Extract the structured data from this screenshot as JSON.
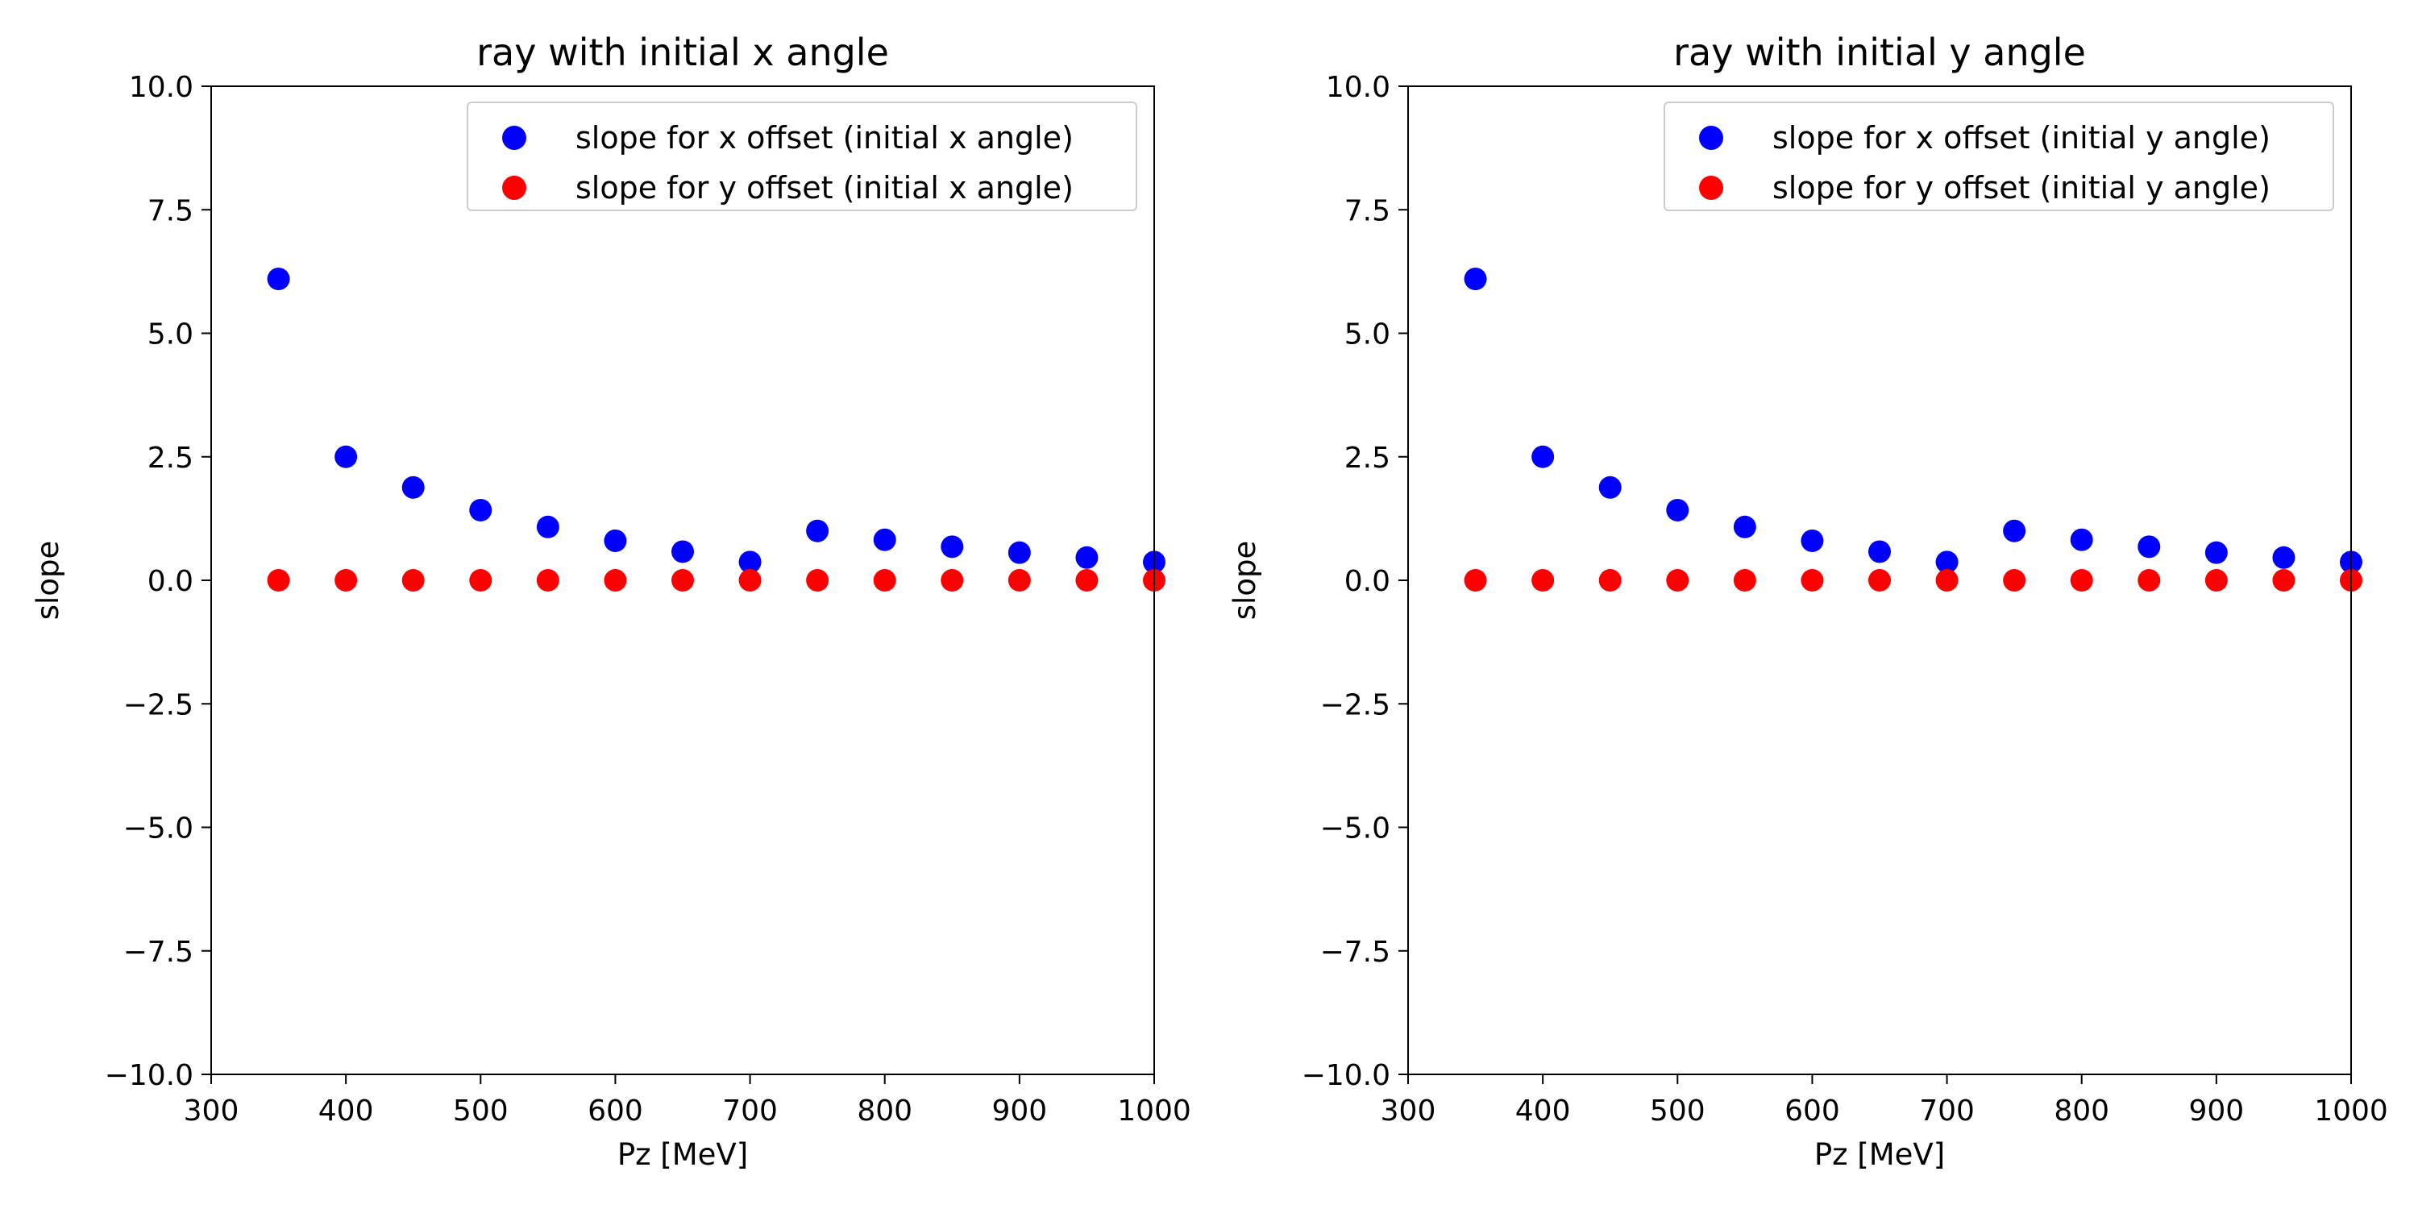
{
  "chart_data": [
    {
      "type": "scatter",
      "title": "ray with initial x angle",
      "xlabel": "Pz [MeV]",
      "ylabel": "slope",
      "xlim": [
        300,
        1000
      ],
      "ylim": [
        -10,
        10
      ],
      "xticks": [
        300,
        400,
        500,
        600,
        700,
        800,
        900,
        1000
      ],
      "yticks": [
        10,
        7.5,
        5,
        2.5,
        0,
        -2.5,
        -5,
        -7.5,
        -10
      ],
      "ytick_labels": [
        "10.0",
        "7.5",
        "5.0",
        "2.5",
        "0.0",
        "−2.5",
        "−5.0",
        "−7.5",
        "−10.0"
      ],
      "grid": false,
      "legend_position": "top-right",
      "x": [
        350,
        400,
        450,
        500,
        550,
        600,
        650,
        700,
        750,
        800,
        850,
        900,
        950,
        1000
      ],
      "series": [
        {
          "name": "slope for x offset (initial x angle)",
          "color": "#0000ff",
          "values": [
            6.1,
            2.5,
            1.88,
            1.42,
            1.08,
            0.8,
            0.58,
            0.37,
            1.0,
            0.82,
            0.68,
            0.56,
            0.46,
            0.37
          ]
        },
        {
          "name": "slope for y offset (initial x angle)",
          "color": "#ff0000",
          "values": [
            0,
            0,
            0,
            0,
            0,
            0,
            0,
            0,
            0,
            0,
            0,
            0,
            0,
            0
          ]
        }
      ]
    },
    {
      "type": "scatter",
      "title": "ray with initial y angle",
      "xlabel": "Pz [MeV]",
      "ylabel": "slope",
      "xlim": [
        300,
        1000
      ],
      "ylim": [
        -10,
        10
      ],
      "xticks": [
        300,
        400,
        500,
        600,
        700,
        800,
        900,
        1000
      ],
      "yticks": [
        10,
        7.5,
        5,
        2.5,
        0,
        -2.5,
        -5,
        -7.5,
        -10
      ],
      "ytick_labels": [
        "10.0",
        "7.5",
        "5.0",
        "2.5",
        "0.0",
        "−2.5",
        "−5.0",
        "−7.5",
        "−10.0"
      ],
      "grid": false,
      "legend_position": "top-right",
      "x": [
        350,
        400,
        450,
        500,
        550,
        600,
        650,
        700,
        750,
        800,
        850,
        900,
        950,
        1000
      ],
      "series": [
        {
          "name": "slope for x offset (initial y angle)",
          "color": "#0000ff",
          "values": [
            6.1,
            2.5,
            1.88,
            1.42,
            1.08,
            0.8,
            0.58,
            0.37,
            1.0,
            0.82,
            0.68,
            0.56,
            0.46,
            0.37
          ]
        },
        {
          "name": "slope for y offset (initial y angle)",
          "color": "#ff0000",
          "values": [
            0,
            0,
            0,
            0,
            0,
            0,
            0,
            0,
            0,
            0,
            0,
            0,
            0,
            0
          ]
        }
      ]
    }
  ]
}
